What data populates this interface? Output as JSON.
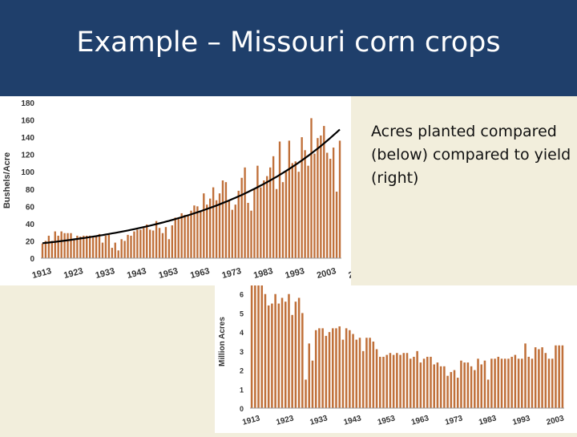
{
  "slide": {
    "title": "Example – Missouri corn crops",
    "caption": "Acres planted compared (below) compared to yield (right)"
  },
  "chart_data": [
    {
      "type": "bar",
      "ylabel": "Bushels/Acre",
      "ylim": [
        0,
        180
      ],
      "yticks": [
        0,
        20,
        40,
        60,
        80,
        100,
        120,
        140,
        160,
        180
      ],
      "xtick_labels": [
        "1913",
        "1923",
        "1933",
        "1943",
        "1953",
        "1963",
        "1973",
        "1983",
        "1993",
        "2003",
        "2013"
      ],
      "x_start": 1913,
      "bar_color": "#c0703a",
      "trend_color": "#000000",
      "trendline": true,
      "values": [
        17,
        20,
        26,
        20,
        31,
        26,
        31,
        29,
        29,
        29,
        21,
        26,
        25,
        26,
        26,
        26,
        24,
        26,
        28,
        18,
        26,
        27,
        12,
        18,
        9,
        22,
        20,
        27,
        26,
        31,
        33,
        33,
        35,
        39,
        33,
        32,
        43,
        35,
        29,
        36,
        22,
        38,
        47,
        46,
        52,
        50,
        50,
        55,
        61,
        60,
        55,
        75,
        62,
        69,
        82,
        67,
        75,
        90,
        88,
        66,
        56,
        62,
        78,
        93,
        105,
        64,
        55,
        80,
        107,
        82,
        90,
        95,
        105,
        118,
        80,
        135,
        88,
        100,
        136,
        110,
        112,
        100,
        140,
        125,
        107,
        162,
        121,
        139,
        142,
        153,
        122,
        115,
        128,
        77,
        136
      ]
    },
    {
      "type": "bar",
      "ylabel": "Million Acres",
      "ylim": [
        0,
        7
      ],
      "yticks": [
        0,
        1,
        2,
        3,
        4,
        5,
        6
      ],
      "xtick_labels": [
        "1913",
        "1923",
        "1933",
        "1943",
        "1953",
        "1963",
        "1973",
        "1983",
        "1993",
        "2003",
        "2013"
      ],
      "x_start": 1913,
      "bar_color": "#c0703a",
      "values": [
        7.0,
        7.0,
        7.0,
        7.0,
        6.0,
        5.4,
        5.5,
        6.0,
        5.5,
        5.8,
        5.6,
        6.0,
        4.9,
        5.6,
        5.8,
        5.0,
        1.5,
        3.4,
        2.5,
        4.1,
        4.2,
        4.2,
        3.8,
        4.0,
        4.2,
        4.2,
        4.3,
        3.6,
        4.2,
        4.1,
        3.9,
        3.6,
        3.7,
        3.0,
        3.7,
        3.7,
        3.5,
        3.1,
        2.7,
        2.7,
        2.8,
        2.9,
        2.8,
        2.9,
        2.8,
        2.9,
        2.9,
        2.6,
        2.7,
        3.0,
        2.4,
        2.6,
        2.7,
        2.7,
        2.3,
        2.4,
        2.2,
        2.2,
        1.7,
        1.9,
        2.0,
        1.6,
        2.5,
        2.4,
        2.4,
        2.2,
        2.0,
        2.6,
        2.3,
        2.5,
        1.5,
        2.6,
        2.6,
        2.7,
        2.6,
        2.6,
        2.6,
        2.7,
        2.8,
        2.6,
        2.6,
        3.4,
        2.7,
        2.6,
        3.2,
        3.1,
        3.2,
        2.9,
        2.6,
        2.6,
        3.3,
        3.3,
        3.3
      ]
    }
  ]
}
